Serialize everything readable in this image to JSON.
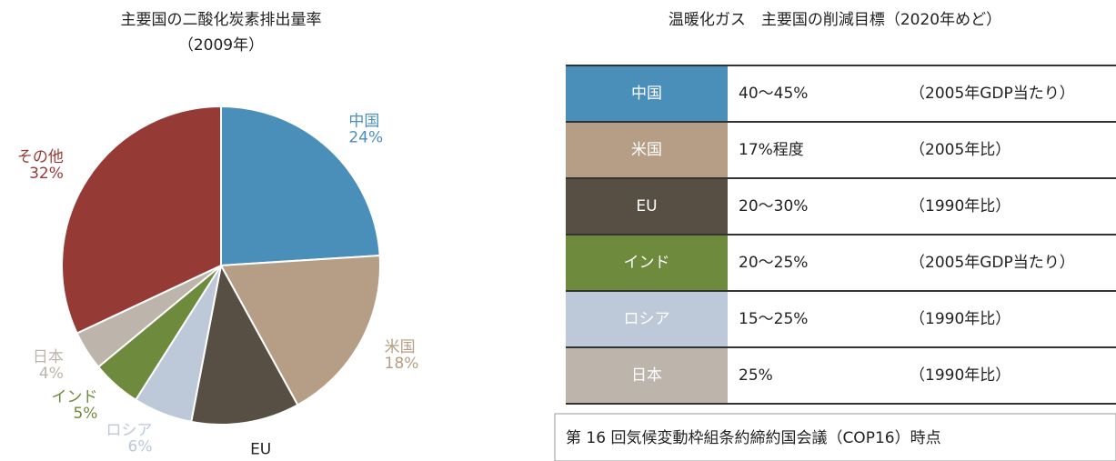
{
  "chart_data": {
    "type": "pie",
    "title": "主要国の二酸化炭素排出量率",
    "subtitle": "（2009年）",
    "categories": [
      "中国",
      "米国",
      "EU",
      "ロシア",
      "インド",
      "日本",
      "その他"
    ],
    "values": [
      24,
      18,
      11,
      6,
      5,
      4,
      32
    ],
    "value_labels": [
      "24%",
      "18%",
      null,
      "6%",
      "5%",
      "4%",
      "32%"
    ],
    "colors": [
      "#4a8fba",
      "#b59e85",
      "#574e44",
      "#bdc8d8",
      "#6e8a3c",
      "#bdb4ac",
      "#963a35"
    ]
  },
  "table": {
    "title": "温暖化ガス　主要国の削減目標（2020年めど）",
    "rows": [
      {
        "country": "中国",
        "target": "40〜45%",
        "basis": "（2005年GDP当たり）",
        "color": "#4a8fba"
      },
      {
        "country": "米国",
        "target": "17%程度",
        "basis": "（2005年比）",
        "color": "#b59e85"
      },
      {
        "country": "EU",
        "target": "20〜30%",
        "basis": "（1990年比）",
        "color": "#574e44"
      },
      {
        "country": "インド",
        "target": "20〜25%",
        "basis": "（2005年GDP当たり）",
        "color": "#6e8a3c"
      },
      {
        "country": "ロシア",
        "target": "15〜25%",
        "basis": "（1990年比）",
        "color": "#bdc8d8"
      },
      {
        "country": "日本",
        "target": "25%",
        "basis": "（1990年比）",
        "color": "#bdb4ac"
      }
    ],
    "footnote": "第 16 回気候変動枠組条約締約国会議（COP16）時点"
  }
}
